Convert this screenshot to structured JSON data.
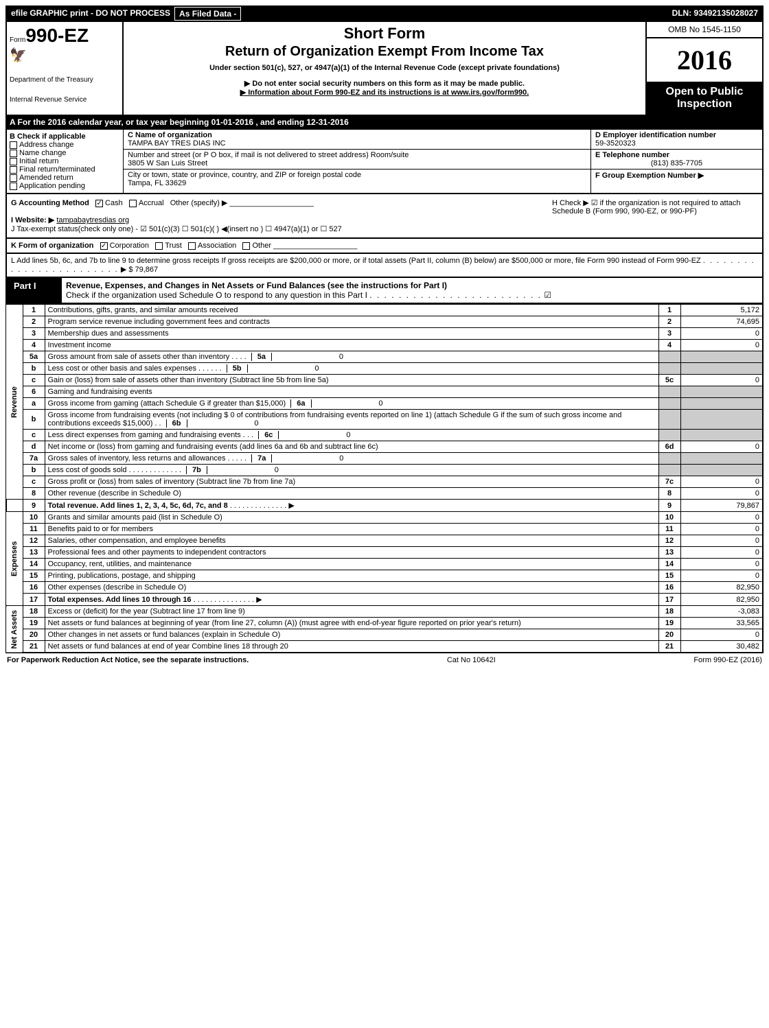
{
  "topbar": {
    "efile": "efile GRAPHIC print - DO NOT PROCESS",
    "asfiled": "As Filed Data -",
    "dln": "DLN: 93492135028027"
  },
  "header": {
    "form_prefix": "Form",
    "form_num": "990-EZ",
    "dept1": "Department of the Treasury",
    "dept2": "Internal Revenue Service",
    "short_form": "Short Form",
    "title": "Return of Organization Exempt From Income Tax",
    "under": "Under section 501(c), 527, or 4947(a)(1) of the Internal Revenue Code (except private foundations)",
    "warning": "▶ Do not enter social security numbers on this form as it may be made public.",
    "info": "▶ Information about Form 990-EZ and its instructions is at www.irs.gov/form990.",
    "omb": "OMB No 1545-1150",
    "year": "2016",
    "open1": "Open to Public",
    "open2": "Inspection"
  },
  "rowA": "A  For the 2016 calendar year, or tax year beginning 01-01-2016          , and ending 12-31-2016",
  "boxB": {
    "title": "B Check if applicable",
    "items": [
      "Address change",
      "Name change",
      "Initial return",
      "Final return/terminated",
      "Amended return",
      "Application pending"
    ]
  },
  "boxC": {
    "name_label": "C Name of organization",
    "name": "TAMPA BAY TRES DIAS INC",
    "addr_label": "Number and street (or P  O  box, if mail is not delivered to street address)  Room/suite",
    "addr": "3805 W San Luis Street",
    "city_label": "City or town, state or province, country, and ZIP or foreign postal code",
    "city": "Tampa, FL  33629"
  },
  "boxD": {
    "label": "D Employer identification number",
    "val": "59-3520323"
  },
  "boxE": {
    "label": "E Telephone number",
    "val": "(813) 835-7705"
  },
  "boxF": {
    "label": "F Group Exemption Number  ▶",
    "val": ""
  },
  "rowG": {
    "label": "G Accounting Method",
    "cash": "Cash",
    "accrual": "Accrual",
    "other": "Other (specify) ▶"
  },
  "rowH": {
    "text": "H   Check ▶  ☑  if the organization is not required to attach Schedule B (Form 990, 990-EZ, or 990-PF)"
  },
  "rowI": {
    "label": "I Website: ▶",
    "val": "tampabaytresdias org"
  },
  "rowJ": "J Tax-exempt status(check only one) - ☑ 501(c)(3) ☐ 501(c)(  ) ◀(insert no ) ☐ 4947(a)(1) or ☐ 527",
  "rowK": {
    "label": "K Form of organization",
    "corp": "Corporation",
    "trust": "Trust",
    "assoc": "Association",
    "other": "Other"
  },
  "rowL": {
    "text": "L Add lines 5b, 6c, and 7b to line 9 to determine gross receipts  If gross receipts are $200,000 or more, or if total assets (Part II, column (B) below) are $500,000 or more, file Form 990 instead of Form 990-EZ",
    "amt": "▶ $ 79,867"
  },
  "part1": {
    "label": "Part I",
    "title": "Revenue, Expenses, and Changes in Net Assets or Fund Balances (see the instructions for Part I)",
    "sub": "Check if the organization used Schedule O to respond to any question in this Part I",
    "checked": "☑"
  },
  "sections": {
    "revenue": "Revenue",
    "expenses": "Expenses",
    "netassets": "Net Assets"
  },
  "lines": {
    "1": {
      "d": "Contributions, gifts, grants, and similar amounts received",
      "n": "1",
      "v": "5,172"
    },
    "2": {
      "d": "Program service revenue including government fees and contracts",
      "n": "2",
      "v": "74,695"
    },
    "3": {
      "d": "Membership dues and assessments",
      "n": "3",
      "v": "0"
    },
    "4": {
      "d": "Investment income",
      "n": "4",
      "v": "0"
    },
    "5a": {
      "d": "Gross amount from sale of assets other than inventory",
      "sb": "5a",
      "sv": "0"
    },
    "5b": {
      "d": "Less  cost or other basis and sales expenses",
      "sb": "5b",
      "sv": "0"
    },
    "5c": {
      "d": "Gain or (loss) from sale of assets other than inventory (Subtract line 5b from line 5a)",
      "n": "5c",
      "v": "0"
    },
    "6": {
      "d": "Gaming and fundraising events"
    },
    "6a": {
      "d": "Gross income from gaming (attach Schedule G if greater than $15,000)",
      "sb": "6a",
      "sv": "0"
    },
    "6b": {
      "d": "Gross income from fundraising events (not including $  0            of contributions from fundraising events reported on line 1) (attach Schedule G if the sum of such gross income and contributions exceeds $15,000)",
      "sb": "6b",
      "sv": "0"
    },
    "6c": {
      "d": "Less  direct expenses from gaming and fundraising events",
      "sb": "6c",
      "sv": "0"
    },
    "6d": {
      "d": "Net income or (loss) from gaming and fundraising events (add lines 6a and 6b and subtract line 6c)",
      "n": "6d",
      "v": "0"
    },
    "7a": {
      "d": "Gross sales of inventory, less returns and allowances",
      "sb": "7a",
      "sv": "0"
    },
    "7b": {
      "d": "Less  cost of goods sold",
      "sb": "7b",
      "sv": "0"
    },
    "7c": {
      "d": "Gross profit or (loss) from sales of inventory (Subtract line 7b from line 7a)",
      "n": "7c",
      "v": "0"
    },
    "8": {
      "d": "Other revenue (describe in Schedule O)",
      "n": "8",
      "v": "0"
    },
    "9": {
      "d": "Total revenue. Add lines 1, 2, 3, 4, 5c, 6d, 7c, and 8",
      "n": "9",
      "v": "79,867",
      "bold": true
    },
    "10": {
      "d": "Grants and similar amounts paid (list in Schedule O)",
      "n": "10",
      "v": "0"
    },
    "11": {
      "d": "Benefits paid to or for members",
      "n": "11",
      "v": "0"
    },
    "12": {
      "d": "Salaries, other compensation, and employee benefits",
      "n": "12",
      "v": "0"
    },
    "13": {
      "d": "Professional fees and other payments to independent contractors",
      "n": "13",
      "v": "0"
    },
    "14": {
      "d": "Occupancy, rent, utilities, and maintenance",
      "n": "14",
      "v": "0"
    },
    "15": {
      "d": "Printing, publications, postage, and shipping",
      "n": "15",
      "v": "0"
    },
    "16": {
      "d": "Other expenses (describe in Schedule O)",
      "n": "16",
      "v": "82,950"
    },
    "17": {
      "d": "Total expenses. Add lines 10 through 16",
      "n": "17",
      "v": "82,950",
      "bold": true
    },
    "18": {
      "d": "Excess or (deficit) for the year (Subtract line 17 from line 9)",
      "n": "18",
      "v": "-3,083"
    },
    "19": {
      "d": "Net assets or fund balances at beginning of year (from line 27, column (A)) (must agree with end-of-year figure reported on prior year's return)",
      "n": "19",
      "v": "33,565"
    },
    "20": {
      "d": "Other changes in net assets or fund balances (explain in Schedule O)",
      "n": "20",
      "v": "0"
    },
    "21": {
      "d": "Net assets or fund balances at end of year  Combine lines 18 through 20",
      "n": "21",
      "v": "30,482"
    }
  },
  "footer": {
    "left": "For Paperwork Reduction Act Notice, see the separate instructions.",
    "mid": "Cat  No  10642I",
    "right": "Form 990-EZ (2016)"
  }
}
